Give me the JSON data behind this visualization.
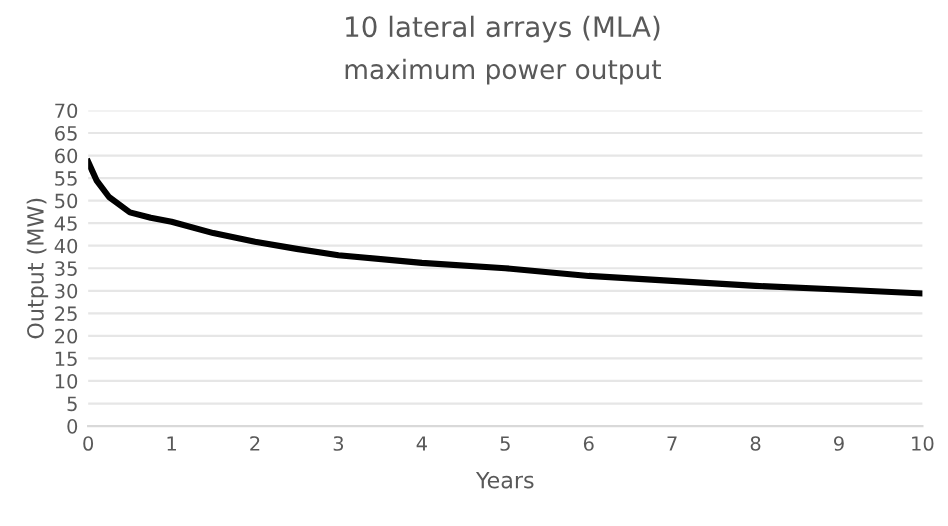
{
  "chart_data": {
    "type": "line",
    "title": "10 lateral arrays (MLA)",
    "subtitle": "maximum power output",
    "xlabel": "Years",
    "ylabel": "Output (MW)",
    "x": [
      0,
      0.1,
      0.25,
      0.5,
      0.75,
      1,
      1.5,
      2,
      2.5,
      3,
      4,
      5,
      6,
      7,
      8,
      9,
      10
    ],
    "series": [
      {
        "color": "#000000",
        "values": [
          58.6,
          54.5,
          50.8,
          47.4,
          46.2,
          45.3,
          42.8,
          40.9,
          39.3,
          37.9,
          36.2,
          35.0,
          33.3,
          32.2,
          31.1,
          30.3,
          29.4
        ]
      }
    ],
    "xlim": [
      0,
      10
    ],
    "xticks": [
      0,
      1,
      2,
      3,
      4,
      5,
      6,
      7,
      8,
      9,
      10
    ],
    "ylim": [
      0,
      70
    ],
    "yticks": [
      0,
      5,
      10,
      15,
      20,
      25,
      30,
      35,
      40,
      45,
      50,
      55,
      60,
      65,
      70
    ],
    "grid": "y",
    "marker": "none",
    "line_style": "solid"
  }
}
